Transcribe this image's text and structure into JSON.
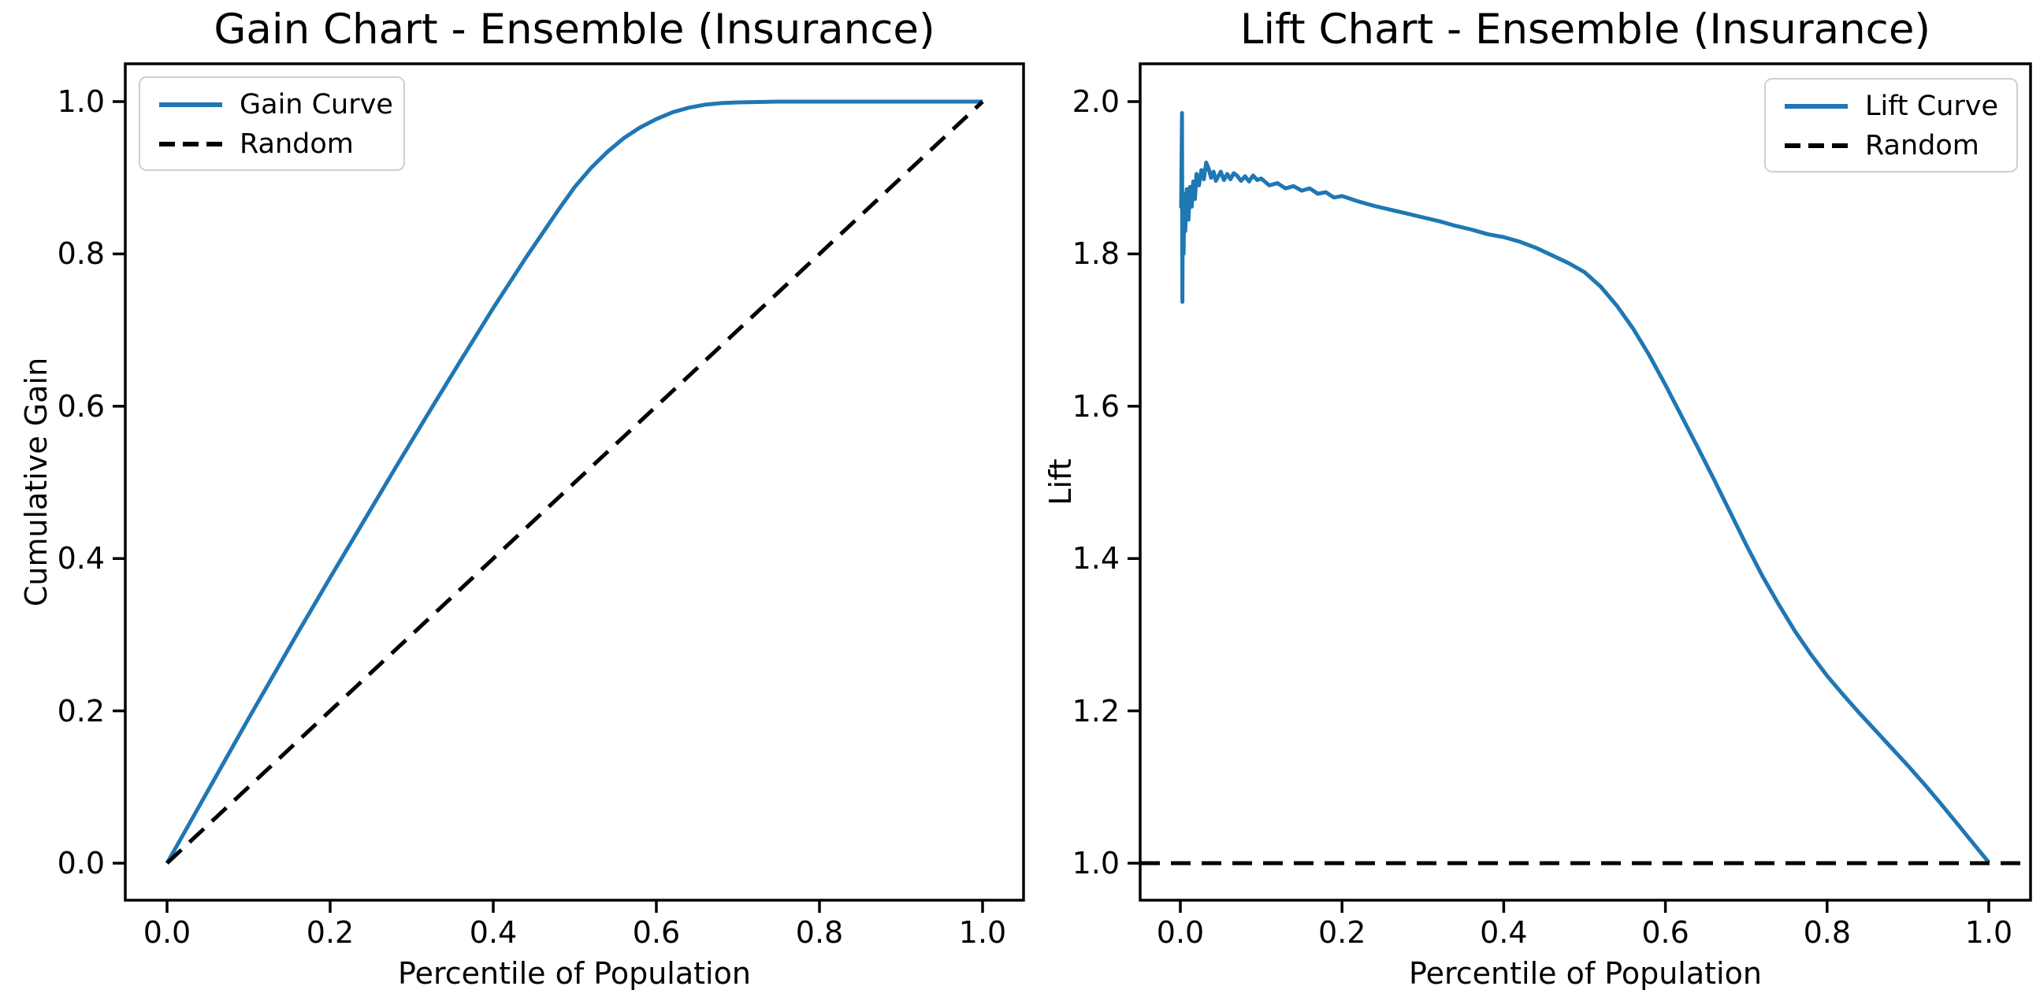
{
  "figure": {
    "background": "#ffffff",
    "accent_blue": "#1f77b4",
    "line_black": "#000000"
  },
  "chart_data": [
    {
      "type": "line",
      "title": "Gain Chart - Ensemble (Insurance)",
      "xlabel": "Percentile of Population",
      "ylabel": "Cumulative Gain",
      "xlim": [
        -0.051,
        1.051
      ],
      "ylim": [
        -0.05,
        1.05
      ],
      "grid": false,
      "legend_position": "upper left",
      "x_tick_labels": [
        "0.0",
        "0.2",
        "0.4",
        "0.6",
        "0.8",
        "1.0"
      ],
      "x_tick_values": [
        0,
        0.2,
        0.4,
        0.6,
        0.8,
        1.0
      ],
      "y_tick_labels": [
        "0.0",
        "0.2",
        "0.4",
        "0.6",
        "0.8",
        "1.0"
      ],
      "y_tick_values": [
        0,
        0.2,
        0.4,
        0.6,
        0.8,
        1.0
      ],
      "series": [
        {
          "name": "Gain Curve",
          "color": "#1f77b4",
          "style": "solid",
          "full_width": false,
          "x": [
            0,
            0.02,
            0.05,
            0.08,
            0.1,
            0.13,
            0.16,
            0.2,
            0.24,
            0.28,
            0.32,
            0.36,
            0.4,
            0.44,
            0.48,
            0.5,
            0.52,
            0.54,
            0.56,
            0.58,
            0.6,
            0.62,
            0.64,
            0.66,
            0.68,
            0.7,
            0.75,
            0.8,
            0.9,
            1.0
          ],
          "y": [
            0,
            0.038,
            0.095,
            0.152,
            0.19,
            0.246,
            0.302,
            0.375,
            0.447,
            0.519,
            0.59,
            0.66,
            0.729,
            0.795,
            0.858,
            0.888,
            0.913,
            0.934,
            0.952,
            0.966,
            0.977,
            0.986,
            0.992,
            0.996,
            0.998,
            0.999,
            1.0,
            1.0,
            1.0,
            1.0
          ]
        },
        {
          "name": "Random",
          "color": "#000000",
          "style": "dashed",
          "full_width": false,
          "x": [
            0,
            1
          ],
          "y": [
            0,
            1
          ]
        }
      ]
    },
    {
      "type": "line",
      "title": "Lift Chart - Ensemble (Insurance)",
      "xlabel": "Percentile of Population",
      "ylabel": "Lift",
      "xlim": [
        -0.051,
        1.051
      ],
      "ylim": [
        0.951,
        2.035
      ],
      "grid": false,
      "legend_position": "upper right",
      "x_tick_labels": [
        "0.0",
        "0.2",
        "0.4",
        "0.6",
        "0.8",
        "1.0"
      ],
      "x_tick_values": [
        0,
        0.2,
        0.4,
        0.6,
        0.8,
        1.0
      ],
      "y_tick_labels": [
        "1.0",
        "1.2",
        "1.4",
        "1.6",
        "1.8",
        "2.0"
      ],
      "y_tick_values": [
        1.0,
        1.2,
        1.4,
        1.6,
        1.8,
        2.0
      ],
      "series": [
        {
          "name": "Lift Curve",
          "color": "#1f77b4",
          "style": "solid",
          "full_width": false,
          "x": [
            0.001,
            0.002,
            0.0025,
            0.003,
            0.004,
            0.005,
            0.006,
            0.008,
            0.01,
            0.012,
            0.014,
            0.016,
            0.018,
            0.02,
            0.023,
            0.026,
            0.029,
            0.032,
            0.035,
            0.038,
            0.041,
            0.044,
            0.047,
            0.05,
            0.054,
            0.058,
            0.062,
            0.066,
            0.07,
            0.075,
            0.08,
            0.085,
            0.09,
            0.095,
            0.1,
            0.11,
            0.12,
            0.13,
            0.14,
            0.15,
            0.16,
            0.17,
            0.18,
            0.19,
            0.2,
            0.22,
            0.24,
            0.26,
            0.28,
            0.3,
            0.32,
            0.34,
            0.36,
            0.38,
            0.4,
            0.42,
            0.44,
            0.46,
            0.48,
            0.5,
            0.52,
            0.54,
            0.56,
            0.58,
            0.6,
            0.62,
            0.64,
            0.66,
            0.68,
            0.7,
            0.72,
            0.74,
            0.76,
            0.78,
            0.8,
            0.82,
            0.84,
            0.86,
            0.88,
            0.9,
            0.92,
            0.94,
            0.96,
            0.98,
            1.0
          ],
          "y": [
            1.86,
            1.985,
            1.737,
            1.88,
            1.8,
            1.875,
            1.83,
            1.885,
            1.845,
            1.888,
            1.862,
            1.895,
            1.872,
            1.905,
            1.89,
            1.91,
            1.898,
            1.92,
            1.912,
            1.9,
            1.908,
            1.896,
            1.902,
            1.908,
            1.897,
            1.905,
            1.898,
            1.906,
            1.903,
            1.896,
            1.902,
            1.895,
            1.903,
            1.897,
            1.899,
            1.89,
            1.893,
            1.886,
            1.889,
            1.883,
            1.886,
            1.879,
            1.881,
            1.874,
            1.876,
            1.869,
            1.863,
            1.858,
            1.853,
            1.848,
            1.843,
            1.837,
            1.832,
            1.826,
            1.822,
            1.816,
            1.808,
            1.798,
            1.788,
            1.776,
            1.757,
            1.732,
            1.702,
            1.667,
            1.628,
            1.587,
            1.546,
            1.504,
            1.461,
            1.418,
            1.377,
            1.34,
            1.305,
            1.274,
            1.246,
            1.221,
            1.197,
            1.174,
            1.151,
            1.128,
            1.104,
            1.079,
            1.053,
            1.027,
            1.001
          ]
        },
        {
          "name": "Random",
          "color": "#000000",
          "style": "dashed",
          "full_width": true,
          "x": [
            0,
            1
          ],
          "y": [
            1.0,
            1.0
          ]
        }
      ]
    }
  ]
}
